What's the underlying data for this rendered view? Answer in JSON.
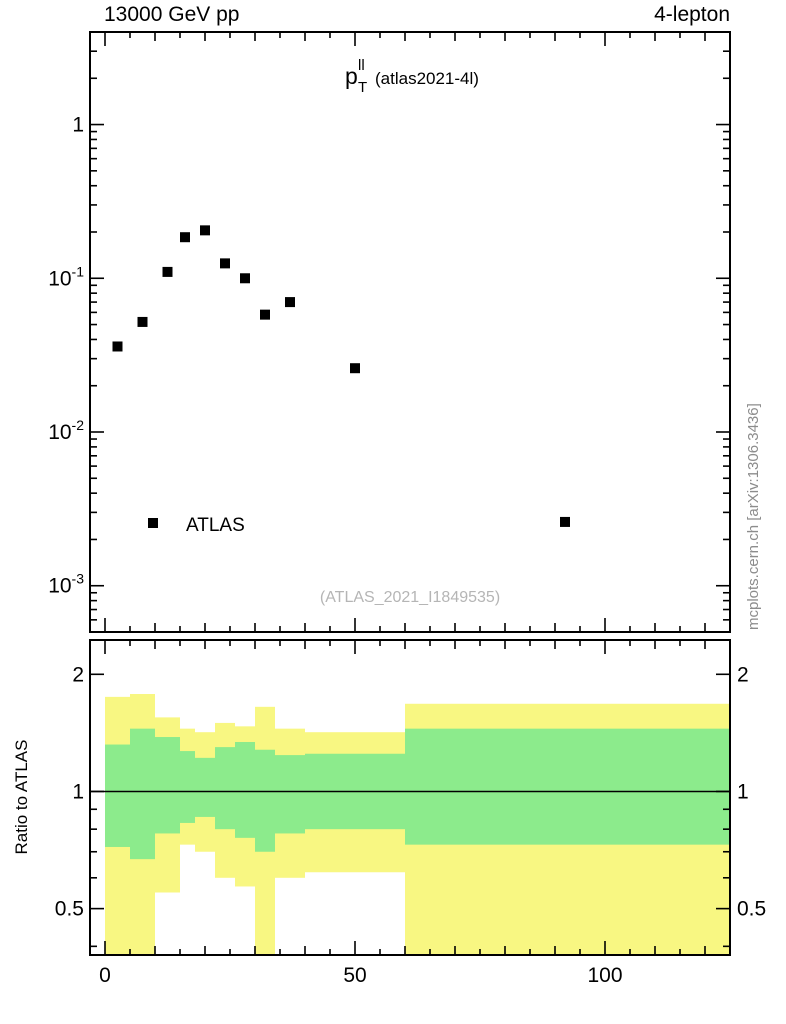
{
  "header": {
    "left": "13000 GeV pp",
    "right": "4-lepton"
  },
  "title": {
    "base": "p",
    "sup": "ll",
    "sub": "T",
    "suffix": "(atlas2021-4l)"
  },
  "legend": {
    "label": "ATLAS"
  },
  "analysis_label": "(ATLAS_2021_I1849535)",
  "watermark": "mcplots.cern.ch [arXiv:1306.3436]",
  "axes": {
    "ratio_ylabel": "Ratio to ATLAS",
    "x_tick_labels": [
      "0",
      "50",
      "100"
    ],
    "top_y_tick_labels": [
      {
        "mantissa": "1",
        "exp": ""
      },
      {
        "mantissa": "10",
        "exp": "-1"
      },
      {
        "mantissa": "10",
        "exp": "-2"
      },
      {
        "mantissa": "10",
        "exp": "-3"
      }
    ],
    "ratio_y_tick_labels": [
      "0.5",
      "1",
      "2"
    ]
  },
  "colors": {
    "marker": "#000000",
    "outer_band": "#f8f782",
    "inner_band": "#8ceb8c",
    "frame": "#000000",
    "analysis_text": "#b5b5b5",
    "watermark_text": "#8c8c8c"
  },
  "chart_data": [
    {
      "type": "scatter",
      "title": "pT(ll) (atlas2021-4l)",
      "xlabel": "",
      "ylabel": "",
      "xlim": [
        -3,
        125
      ],
      "ylim": [
        0.0005,
        4
      ],
      "yscale": "log",
      "xticks": [
        0,
        50,
        100
      ],
      "yticks": [
        1,
        0.1,
        0.01,
        0.001
      ],
      "series": [
        {
          "name": "ATLAS",
          "marker": "filled-square",
          "color": "#000000",
          "x": [
            2.5,
            7.5,
            12.5,
            16,
            20,
            24,
            28,
            32,
            37,
            50,
            92
          ],
          "y": [
            0.036,
            0.052,
            0.11,
            0.185,
            0.205,
            0.125,
            0.1,
            0.058,
            0.07,
            0.026,
            0.0026
          ]
        }
      ],
      "legend_position": "bottom-left"
    },
    {
      "type": "band-ratio",
      "ylabel": "Ratio to ATLAS",
      "yscale": "log",
      "ylim": [
        0.38,
        2.45
      ],
      "yticks": [
        0.5,
        1,
        2
      ],
      "reference_line": 1,
      "bins": [
        {
          "x0": 0,
          "x1": 5,
          "outer": [
            0.36,
            1.75
          ],
          "inner": [
            0.72,
            1.32
          ]
        },
        {
          "x0": 5,
          "x1": 10,
          "outer": [
            0.36,
            1.78
          ],
          "inner": [
            0.67,
            1.45
          ]
        },
        {
          "x0": 10,
          "x1": 15,
          "outer": [
            0.55,
            1.55
          ],
          "inner": [
            0.78,
            1.38
          ]
        },
        {
          "x0": 15,
          "x1": 18,
          "outer": [
            0.73,
            1.45
          ],
          "inner": [
            0.83,
            1.27
          ]
        },
        {
          "x0": 18,
          "x1": 22,
          "outer": [
            0.7,
            1.42
          ],
          "inner": [
            0.86,
            1.22
          ]
        },
        {
          "x0": 22,
          "x1": 26,
          "outer": [
            0.6,
            1.5
          ],
          "inner": [
            0.8,
            1.3
          ]
        },
        {
          "x0": 26,
          "x1": 30,
          "outer": [
            0.57,
            1.47
          ],
          "inner": [
            0.76,
            1.34
          ]
        },
        {
          "x0": 30,
          "x1": 34,
          "outer": [
            0.36,
            1.65
          ],
          "inner": [
            0.7,
            1.28
          ]
        },
        {
          "x0": 34,
          "x1": 40,
          "outer": [
            0.6,
            1.45
          ],
          "inner": [
            0.78,
            1.24
          ]
        },
        {
          "x0": 40,
          "x1": 60,
          "outer": [
            0.62,
            1.42
          ],
          "inner": [
            0.8,
            1.25
          ]
        },
        {
          "x0": 60,
          "x1": 125,
          "outer": [
            0.36,
            1.68
          ],
          "inner": [
            0.73,
            1.45
          ]
        }
      ]
    }
  ]
}
